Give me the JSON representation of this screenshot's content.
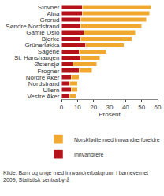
{
  "chart_data": {
    "type": "bar",
    "orientation": "horizontal",
    "stacked": true,
    "categories": [
      "Stovner",
      "Alna",
      "Grorud",
      "Søndre Nordstrand",
      "Gamle Oslo",
      "Bjerke",
      "Grünerløkka",
      "Sagene",
      "St. Hanshaugen",
      "Østensjø",
      "Frogner",
      "Nordre Aker",
      "Nordstrand",
      "Ullern",
      "Vestre Aker"
    ],
    "series": [
      {
        "name": "Innvandrere",
        "color": "#b5121b",
        "values": [
          13,
          13,
          12,
          12,
          14,
          12,
          15,
          11,
          12,
          7,
          11,
          6,
          5,
          6,
          5
        ]
      },
      {
        "name": "Norskfødte med innvandrerforeldre",
        "color": "#f0a830",
        "values": [
          43,
          42,
          41,
          38,
          32,
          32,
          24,
          17,
          12,
          15,
          8,
          5,
          5,
          4,
          4
        ]
      }
    ],
    "x_label": "Prosent",
    "xlim": [
      0,
      60
    ],
    "xticks": [
      0,
      10,
      20,
      30,
      40,
      50,
      60
    ],
    "grid": false,
    "legend": "bottom",
    "annotations": [
      "Kilde: Barn og unge med innvandrerbakgrunn i barnevernet 2009, Statistisk sentralbyrå"
    ]
  }
}
